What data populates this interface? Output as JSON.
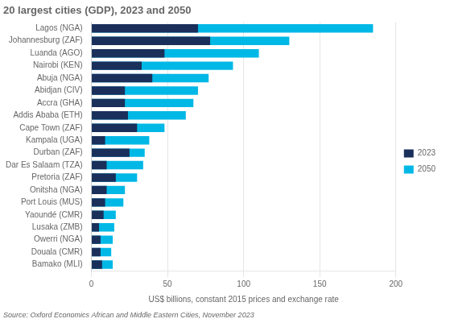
{
  "chart_data": {
    "type": "bar",
    "orientation": "horizontal",
    "title": "20 largest cities (GDP), 2023 and 2050",
    "source": "Source: Oxford Economics African and Middle Eastern Cities, November 2023",
    "xlabel": "US$ billions, constant 2015 prices and exchange rate",
    "categories": [
      "Lagos (NGA)",
      "Johannesburg (ZAF)",
      "Luanda (AGO)",
      "Nairobi (KEN)",
      "Abuja (NGA)",
      "Abidjan (CIV)",
      "Accra (GHA)",
      "Addis Ababa (ETH)",
      "Cape Town (ZAF)",
      "Kampala (UGA)",
      "Durban (ZAF)",
      "Dar Es Salaam (TZA)",
      "Pretoria (ZAF)",
      "Onitsha (NGA)",
      "Port Louis (MUS)",
      "Yaoundé (CMR)",
      "Lusaka (ZMB)",
      "Owerri (NGA)",
      "Douala (CMR)",
      "Bamako (MLI)"
    ],
    "series": [
      {
        "name": "2023",
        "color": "#1a2f5a",
        "values": [
          70,
          78,
          48,
          33,
          40,
          22,
          22,
          24,
          30,
          9,
          25,
          10,
          16,
          10,
          9,
          8,
          5,
          6,
          6,
          7
        ]
      },
      {
        "name": "2050",
        "color": "#00b8e6",
        "values": [
          185,
          130,
          110,
          93,
          77,
          70,
          67,
          62,
          48,
          38,
          35,
          34,
          30,
          22,
          21,
          16,
          15,
          14,
          13,
          14
        ]
      }
    ],
    "xlim": [
      0,
      200
    ],
    "xticks": [
      0,
      50,
      100,
      150,
      200
    ],
    "grid": true,
    "legend": "right"
  }
}
